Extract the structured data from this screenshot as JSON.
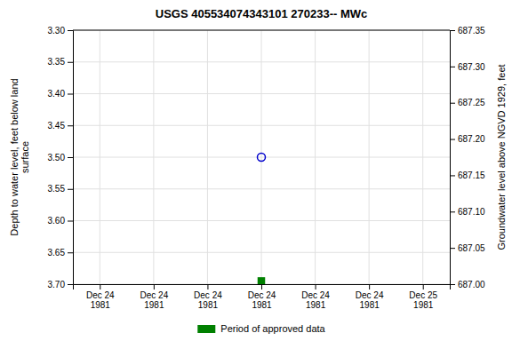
{
  "chart_data": {
    "type": "scatter",
    "title": "USGS 405534074343101 270233-- MWc",
    "y_label": "Depth to water level, feet below land\nsurface",
    "y2_label": "Groundwater level above NGVD 1929, feet",
    "categories": [
      "Dec 24\n1981",
      "Dec 24\n1981",
      "Dec 24\n1981",
      "Dec 24\n1981",
      "Dec 24\n1981",
      "Dec 24\n1981",
      "Dec 25\n1981"
    ],
    "series": [
      {
        "color": "#0000cc",
        "marker": "circle-open",
        "values": [
          null,
          null,
          null,
          3.5,
          null,
          null,
          null
        ]
      },
      {
        "name": "Period of approved data",
        "color": "#008000",
        "marker": "square",
        "values": [
          null,
          null,
          null,
          3.695,
          null,
          null,
          null
        ]
      }
    ],
    "ylim": [
      3.7,
      3.3
    ],
    "yticks": [
      {
        "value": 3.3,
        "label": "3.30"
      },
      3.35,
      {
        "value": 3.4,
        "label": "3.40"
      },
      3.45,
      {
        "value": 3.5,
        "label": "3.50"
      },
      3.55,
      {
        "value": 3.6,
        "label": "3.60"
      },
      3.65,
      {
        "value": 3.7,
        "label": "3.70"
      }
    ],
    "y2lim": [
      687.0,
      687.35
    ],
    "y2ticks": [
      687.35,
      {
        "value": 687.3,
        "label": "687.30"
      },
      687.25,
      {
        "value": 687.2,
        "label": "687.20"
      },
      687.15,
      {
        "value": 687.1,
        "label": "687.10"
      },
      687.05,
      {
        "value": 687.0,
        "label": "687.00"
      }
    ],
    "grid": true,
    "legend": "bottom"
  }
}
